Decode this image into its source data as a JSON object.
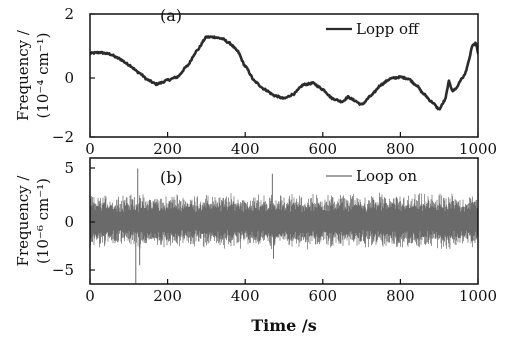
{
  "chart_data": [
    {
      "type": "line",
      "panel_label": "(a)",
      "ylabel_lines": [
        "Frequency /",
        "(10⁻⁴ cm⁻¹)"
      ],
      "xlim": [
        0,
        1000
      ],
      "ylim": [
        -2,
        2
      ],
      "xticks": [
        "0",
        "200",
        "400",
        "600",
        "800",
        "1000"
      ],
      "yticks": [
        "2",
        "0",
        "−2"
      ],
      "legend": {
        "placement": "top-right"
      },
      "series": [
        {
          "name": "Lopp off",
          "color": "#2b2b2b",
          "x": [
            0,
            25,
            50,
            75,
            100,
            125,
            150,
            170,
            180,
            200,
            225,
            250,
            275,
            300,
            320,
            340,
            360,
            380,
            400,
            425,
            450,
            475,
            500,
            525,
            550,
            575,
            600,
            625,
            650,
            665,
            680,
            700,
            725,
            750,
            775,
            800,
            820,
            840,
            860,
            880,
            900,
            915,
            925,
            935,
            945,
            955,
            965,
            975,
            985,
            995,
            1000
          ],
          "y": [
            0.72,
            0.75,
            0.7,
            0.55,
            0.35,
            0.1,
            -0.15,
            -0.28,
            -0.25,
            -0.15,
            -0.05,
            0.3,
            0.8,
            1.25,
            1.25,
            1.2,
            1.05,
            0.8,
            0.3,
            -0.2,
            -0.45,
            -0.65,
            -0.75,
            -0.6,
            -0.3,
            -0.25,
            -0.45,
            -0.75,
            -0.85,
            -0.7,
            -0.8,
            -0.95,
            -0.65,
            -0.3,
            -0.1,
            -0.05,
            -0.1,
            -0.3,
            -0.6,
            -0.85,
            -1.1,
            -0.8,
            -0.2,
            -0.5,
            -0.4,
            -0.15,
            0.0,
            0.4,
            0.95,
            1.05,
            0.7
          ]
        }
      ]
    },
    {
      "type": "line",
      "panel_label": "(b)",
      "ylabel_lines": [
        "Frequency /",
        "(10⁻⁶ cm⁻¹)"
      ],
      "xlabel": "Time /s",
      "xlim": [
        0,
        1000
      ],
      "ylim": [
        -6,
        6
      ],
      "xticks": [
        "0",
        "200",
        "400",
        "600",
        "800",
        "1000"
      ],
      "yticks": [
        "5",
        "0",
        "−5"
      ],
      "legend": {
        "placement": "top-right"
      },
      "series": [
        {
          "name": "Loop on",
          "color": "#6a6a6a",
          "x": [
            0,
            1000
          ],
          "y": [
            0,
            0
          ],
          "noise_amplitude": 2.5,
          "spikes": [
            {
              "x": 118,
              "y": -6.0
            },
            {
              "x": 123,
              "y": 5.0
            },
            {
              "x": 128,
              "y": -4.2
            },
            {
              "x": 470,
              "y": 4.5
            },
            {
              "x": 473,
              "y": -3.6
            }
          ]
        }
      ]
    }
  ]
}
